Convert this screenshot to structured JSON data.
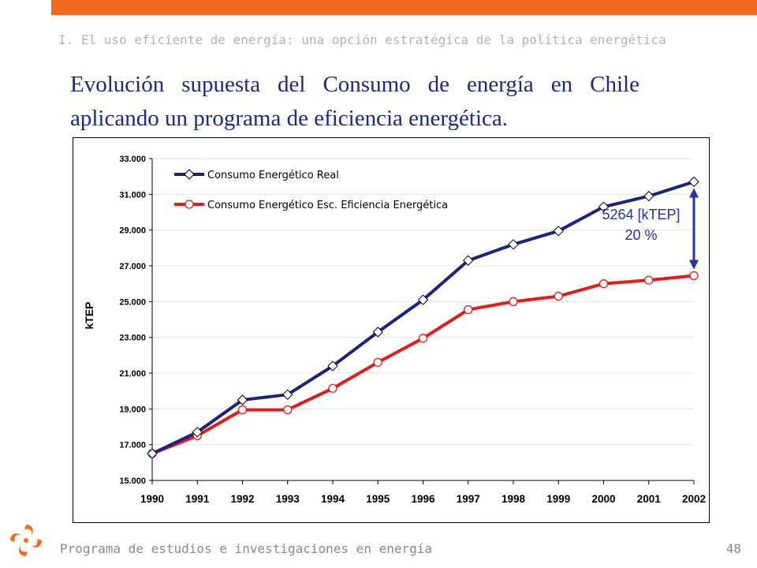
{
  "header": {
    "section": "I. El uso eficiente de energía: una opción estratégica de la política energética"
  },
  "slide": {
    "title": "Evolución supuesta del Consumo de energía en Chile aplicando un programa de eficiencia energética."
  },
  "footer": {
    "program": "Programa de estudios e investigaciones en energía",
    "page": "48"
  },
  "colors": {
    "accent_bar": "#f26a1b",
    "title": "#1a2a84",
    "series_real": "#1a237e",
    "series_efficiency": "#e31b1b",
    "annotation": "#2430b0"
  },
  "chart_data": {
    "type": "line",
    "title": "",
    "xlabel": "",
    "ylabel": "kTEP",
    "x": [
      "1990",
      "1991",
      "1992",
      "1993",
      "1994",
      "1995",
      "1996",
      "1997",
      "1998",
      "1999",
      "2000",
      "2001",
      "2002"
    ],
    "ylim": [
      15000,
      33000
    ],
    "yticks": [
      15000,
      17000,
      19000,
      21000,
      23000,
      25000,
      27000,
      29000,
      31000,
      33000
    ],
    "ytick_labels": [
      "15.000",
      "17.000",
      "19.000",
      "21.000",
      "23.000",
      "25.000",
      "27.000",
      "29.000",
      "31.000",
      "33.000"
    ],
    "grid": "horizontal",
    "legend_position": "top-left",
    "series": [
      {
        "name": "Consumo Energético Real",
        "marker": "diamond",
        "values": [
          16500,
          17700,
          19500,
          19800,
          21400,
          23300,
          25100,
          27300,
          28200,
          28950,
          30300,
          30900,
          31700
        ]
      },
      {
        "name": "Consumo Energético Esc. Eficiencia Energética",
        "marker": "circle",
        "values": [
          16500,
          17500,
          18950,
          18950,
          20150,
          21600,
          22950,
          24550,
          25000,
          25300,
          26000,
          26200,
          26450
        ]
      }
    ],
    "annotation": {
      "line1": "5264 [kTEP]",
      "line2": "20 %",
      "at_x": "2002"
    }
  }
}
